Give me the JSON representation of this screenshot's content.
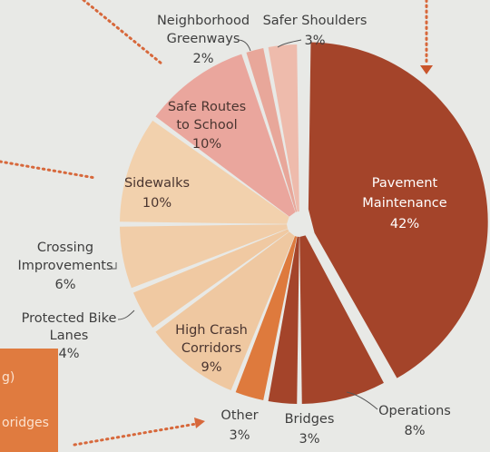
{
  "chart_data": {
    "type": "pie",
    "start_angle_deg": 0,
    "direction": "clockwise",
    "slices": [
      {
        "name": "Pavement Maintenance",
        "label_lines": [
          "Pavement",
          "Maintenance"
        ],
        "value": 42,
        "value_label": "42%",
        "color": "#a4442a"
      },
      {
        "name": "Operations",
        "label_lines": [
          "Operations"
        ],
        "value": 8,
        "value_label": "8%",
        "color": "#a4442a"
      },
      {
        "name": "Bridges",
        "label_lines": [
          "Bridges"
        ],
        "value": 3,
        "value_label": "3%",
        "color": "#a4442a"
      },
      {
        "name": "Other",
        "label_lines": [
          "Other"
        ],
        "value": 3,
        "value_label": "3%",
        "color": "#de7a3d"
      },
      {
        "name": "High Crash Corridors",
        "label_lines": [
          "High Crash",
          "Corridors"
        ],
        "value": 9,
        "value_label": "9%",
        "color": "#efc8a1"
      },
      {
        "name": "Protected Bike Lanes",
        "label_lines": [
          "Protected Bike",
          "Lanes"
        ],
        "value": 4,
        "value_label": "4%",
        "color": "#f0c9a2"
      },
      {
        "name": "Crossing Improvements",
        "label_lines": [
          "Crossing",
          "Improvements"
        ],
        "value": 6,
        "value_label": "6%",
        "color": "#f1cda8"
      },
      {
        "name": "Sidewalks",
        "label_lines": [
          "Sidewalks"
        ],
        "value": 10,
        "value_label": "10%",
        "color": "#f2d1ad"
      },
      {
        "name": "Safe Routes to School",
        "label_lines": [
          "Safe Routes",
          "to School"
        ],
        "value": 10,
        "value_label": "10%",
        "color": "#eaa69d"
      },
      {
        "name": "Neighborhood Greenways",
        "label_lines": [
          "Neighborhood",
          "Greenways"
        ],
        "value": 2,
        "value_label": "2%",
        "color": "#e8a79a"
      },
      {
        "name": "Safer Shoulders",
        "label_lines": [
          "Safer Shoulders"
        ],
        "value": 3,
        "value_label": "3%",
        "color": "#eebbac"
      }
    ]
  },
  "legend": {
    "heading_fragment": "g)",
    "item_fragment": "oridges",
    "color": "#e07b3f"
  }
}
